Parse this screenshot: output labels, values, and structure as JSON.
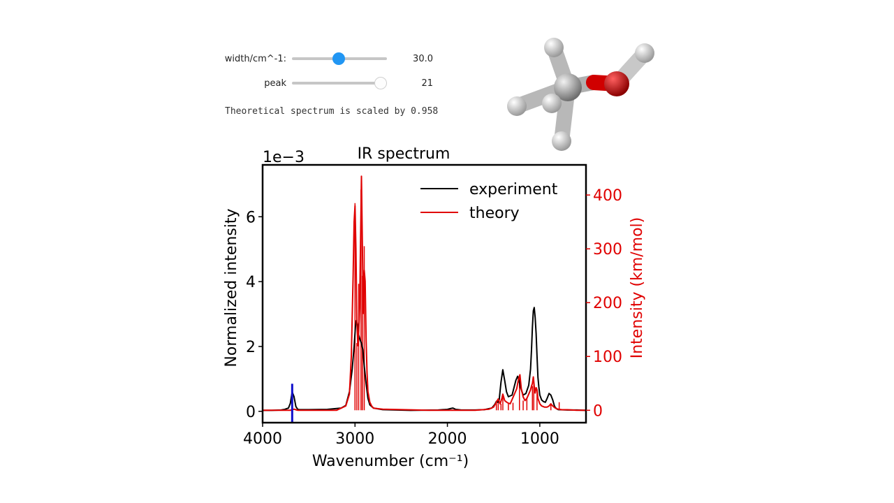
{
  "controls": {
    "width": {
      "label": "width/cm^-1:",
      "value": "30.0",
      "fraction": 0.49
    },
    "peak": {
      "label": "peak",
      "value": "21",
      "fraction": 1.0
    }
  },
  "note": "Theoretical spectrum is scaled by 0.958",
  "molecule_icon": "methanol-molecule-3d",
  "chart_data": {
    "type": "line",
    "title": "IR spectrum",
    "xlabel": "Wavenumber (cm⁻¹)",
    "ylabel": "Normalized intensity",
    "y2label": "Intensity (km/mol)",
    "offset_label": "1e−3",
    "xlim": [
      4000,
      500
    ],
    "ylim": [
      -0.35,
      7.6
    ],
    "y2lim": [
      -23,
      456
    ],
    "x_ticks": [
      "4000",
      "3000",
      "2000",
      "1000"
    ],
    "y_ticks": [
      "0",
      "2",
      "4",
      "6"
    ],
    "y2_ticks": [
      "0",
      "100",
      "200",
      "300",
      "400"
    ],
    "legend_position": "upper right",
    "colors": {
      "experiment": "#000000",
      "theory": "#e00000",
      "selected_peak": "#1010cc"
    },
    "series": [
      {
        "name": "experiment",
        "x": [
          4000,
          3900,
          3800,
          3760,
          3720,
          3700,
          3680,
          3660,
          3640,
          3620,
          3600,
          3500,
          3300,
          3150,
          3100,
          3060,
          3030,
          3010,
          2995,
          2985,
          2970,
          2960,
          2945,
          2930,
          2915,
          2900,
          2880,
          2860,
          2840,
          2800,
          2700,
          2400,
          2100,
          2000,
          1960,
          1940,
          1910,
          1850,
          1800,
          1700,
          1600,
          1520,
          1490,
          1470,
          1455,
          1440,
          1420,
          1400,
          1380,
          1360,
          1340,
          1300,
          1260,
          1240,
          1225,
          1210,
          1180,
          1150,
          1120,
          1100,
          1090,
          1080,
          1070,
          1060,
          1050,
          1040,
          1030,
          1020,
          1010,
          1000,
          980,
          960,
          940,
          920,
          900,
          880,
          860,
          840,
          820,
          800,
          700,
          600,
          500
        ],
        "values": [
          0.03,
          0.03,
          0.04,
          0.06,
          0.1,
          0.25,
          0.6,
          0.45,
          0.15,
          0.06,
          0.05,
          0.05,
          0.06,
          0.1,
          0.18,
          0.6,
          1.3,
          2.0,
          2.6,
          2.8,
          2.65,
          2.35,
          2.2,
          2.1,
          1.9,
          1.4,
          0.85,
          0.4,
          0.2,
          0.1,
          0.05,
          0.03,
          0.04,
          0.06,
          0.09,
          0.1,
          0.06,
          0.04,
          0.04,
          0.04,
          0.05,
          0.1,
          0.2,
          0.3,
          0.28,
          0.35,
          0.9,
          1.28,
          0.95,
          0.6,
          0.45,
          0.5,
          0.95,
          1.08,
          0.95,
          0.75,
          0.5,
          0.55,
          0.8,
          1.3,
          1.9,
          2.6,
          3.1,
          3.2,
          2.9,
          2.4,
          1.7,
          1.05,
          0.75,
          0.5,
          0.35,
          0.3,
          0.28,
          0.4,
          0.55,
          0.5,
          0.35,
          0.15,
          0.08,
          0.05,
          0.04,
          0.04,
          0.03
        ]
      },
      {
        "name": "theory",
        "axis": "right",
        "x": [
          4000,
          3800,
          3700,
          3680,
          3660,
          3640,
          3620,
          3600,
          3500,
          3200,
          3100,
          3060,
          3040,
          3020,
          3010,
          3000,
          2990,
          2980,
          2970,
          2960,
          2950,
          2940,
          2930,
          2920,
          2910,
          2900,
          2890,
          2880,
          2870,
          2860,
          2840,
          2820,
          2800,
          2700,
          2200,
          1900,
          1700,
          1550,
          1500,
          1470,
          1450,
          1430,
          1410,
          1400,
          1380,
          1350,
          1320,
          1300,
          1280,
          1250,
          1230,
          1215,
          1200,
          1180,
          1160,
          1140,
          1120,
          1100,
          1090,
          1080,
          1070,
          1060,
          1050,
          1040,
          1030,
          1020,
          1000,
          980,
          950,
          920,
          900,
          880,
          860,
          840,
          820,
          800,
          760,
          700,
          600,
          500
        ],
        "values": [
          0,
          0,
          0,
          1,
          2,
          1,
          0,
          0,
          0,
          0,
          8,
          30,
          100,
          250,
          350,
          380,
          300,
          170,
          120,
          145,
          190,
          310,
          435,
          300,
          180,
          260,
          240,
          130,
          70,
          35,
          15,
          8,
          4,
          2,
          0,
          0,
          0,
          2,
          6,
          15,
          21,
          12,
          22,
          30,
          18,
          14,
          12,
          20,
          28,
          40,
          58,
          66,
          40,
          25,
          18,
          22,
          30,
          38,
          45,
          50,
          62,
          45,
          32,
          42,
          38,
          22,
          12,
          8,
          6,
          6,
          8,
          12,
          8,
          5,
          3,
          2,
          1,
          1,
          0,
          0
        ]
      }
    ],
    "theory_sticks": [
      {
        "x": 3000,
        "value": 385
      },
      {
        "x": 2980,
        "value": 125
      },
      {
        "x": 2960,
        "value": 235
      },
      {
        "x": 2935,
        "value": 410
      },
      {
        "x": 2920,
        "value": 250
      },
      {
        "x": 2900,
        "value": 305
      },
      {
        "x": 1470,
        "value": 18
      },
      {
        "x": 1450,
        "value": 20
      },
      {
        "x": 1420,
        "value": 12
      },
      {
        "x": 1400,
        "value": 28
      },
      {
        "x": 1340,
        "value": 12
      },
      {
        "x": 1290,
        "value": 14
      },
      {
        "x": 1220,
        "value": 62
      },
      {
        "x": 1180,
        "value": 18
      },
      {
        "x": 1140,
        "value": 22
      },
      {
        "x": 1080,
        "value": 45
      },
      {
        "x": 1065,
        "value": 58
      },
      {
        "x": 1030,
        "value": 35
      },
      {
        "x": 880,
        "value": 12
      },
      {
        "x": 790,
        "value": 15
      }
    ],
    "selected_peak": {
      "x": 3680,
      "value": 0.85
    }
  }
}
